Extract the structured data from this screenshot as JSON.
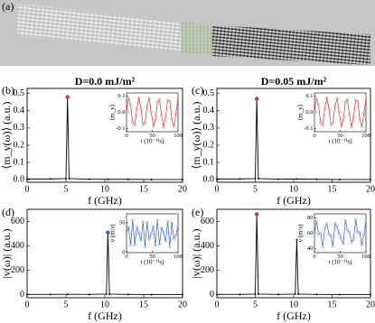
{
  "panel_labels": [
    "(a)",
    "(b)",
    "(c)",
    "(d)",
    "(e)"
  ],
  "chart_data": [
    {
      "type": "line",
      "title": "D=0.0 mJ/m²",
      "xlabel": "f (GHz)",
      "ylabel": "⟨m_y(ω)⟩ (a.u.)",
      "x": [
        0,
        3,
        5,
        5.2,
        5.4,
        8,
        10.4,
        13,
        16,
        20
      ],
      "values": [
        0.004,
        0.004,
        0.006,
        0.48,
        0.006,
        0.003,
        0.002,
        0.002,
        0.001,
        0.001
      ],
      "color": "#000000",
      "peak_color": "#e03030",
      "xlim": [
        0,
        20
      ],
      "xticks": [
        0,
        5,
        10,
        15,
        20
      ],
      "ylim": [
        -0.015,
        0.53
      ],
      "yticks": [
        {
          "value": 0,
          "label": "0.0"
        },
        0.1,
        0.2,
        0.3,
        0.4,
        0.5
      ],
      "inset": {
        "type": "line",
        "xlabel": "t (10⁻¹¹s)",
        "ylabel": "⟨m_y⟩",
        "color": "#e03030",
        "x": [
          0,
          4,
          8,
          12,
          16,
          20,
          24,
          28,
          32,
          36,
          40,
          44,
          48,
          52,
          56,
          60,
          64,
          68,
          72,
          76,
          80,
          84,
          88,
          92,
          96,
          100
        ],
        "values": [
          0,
          0.087,
          0.045,
          -0.063,
          -0.078,
          0.022,
          0.09,
          0.025,
          -0.077,
          -0.065,
          0.043,
          0.087,
          0.002,
          -0.086,
          -0.047,
          0.062,
          0.079,
          -0.02,
          -0.09,
          -0.027,
          0.076,
          0.066,
          -0.041,
          -0.088,
          -0.005,
          0.086
        ],
        "xlim": [
          0,
          100
        ],
        "xticks": [
          0,
          50,
          100
        ],
        "ylim": [
          -0.12,
          0.12
        ],
        "yticks": [
          -0.1,
          {
            "value": 0,
            "label": "0.0"
          },
          0.1
        ]
      }
    },
    {
      "type": "line",
      "title": "D=0.05 mJ/m²",
      "xlabel": "f (GHz)",
      "ylabel": "⟨m_y(ω)⟩ (a.u.)",
      "x": [
        0,
        3,
        5,
        5.2,
        5.4,
        8,
        10.4,
        13,
        16,
        20
      ],
      "values": [
        0.004,
        0.004,
        0.006,
        0.47,
        0.006,
        0.003,
        0.004,
        0.002,
        0.001,
        0.001
      ],
      "color": "#000000",
      "peak_color": "#e03030",
      "xlim": [
        0,
        20
      ],
      "xticks": [
        0,
        5,
        10,
        15,
        20
      ],
      "ylim": [
        -0.015,
        0.53
      ],
      "yticks": [
        {
          "value": 0,
          "label": "0.0"
        },
        0.1,
        0.2,
        0.3,
        0.4,
        0.5
      ],
      "inset": {
        "type": "line",
        "xlabel": "t (10⁻¹¹s)",
        "ylabel": "⟨m_y⟩",
        "color": "#e03030",
        "x": [
          0,
          4,
          8,
          12,
          16,
          20,
          24,
          28,
          32,
          36,
          40,
          44,
          48,
          52,
          56,
          60,
          64,
          68,
          72,
          76,
          80,
          84,
          88,
          92,
          96,
          100
        ],
        "values": [
          0,
          0.087,
          0.045,
          -0.063,
          -0.078,
          0.022,
          0.09,
          0.025,
          -0.077,
          -0.065,
          0.043,
          0.087,
          0.002,
          -0.086,
          -0.047,
          0.062,
          0.079,
          -0.02,
          -0.09,
          -0.027,
          0.076,
          0.066,
          -0.041,
          -0.088,
          -0.005,
          0.086
        ],
        "xlim": [
          0,
          100
        ],
        "xticks": [
          0,
          50,
          100
        ],
        "ylim": [
          -0.12,
          0.12
        ],
        "yticks": [
          -0.1,
          {
            "value": 0,
            "label": "0.0"
          },
          0.1
        ]
      }
    },
    {
      "type": "line",
      "xlabel": "f (GHz)",
      "ylabel": "|v(ω)| (a.u.)",
      "x": [
        0,
        3,
        5.2,
        8,
        10.2,
        10.4,
        10.6,
        13,
        16,
        20
      ],
      "values": [
        2,
        2,
        3,
        2,
        5,
        510,
        5,
        2,
        1,
        1
      ],
      "color": "#000000",
      "peak_color": "#3060d0",
      "xlim": [
        0,
        20
      ],
      "xticks": [
        0,
        5,
        10,
        15,
        20
      ],
      "ylim": [
        -25,
        700
      ],
      "yticks": [
        0,
        200,
        400,
        600
      ],
      "inset": {
        "type": "line",
        "xlabel": "t (10⁻¹¹s)",
        "ylabel": "v (m/s)",
        "color": "#3060d0",
        "x": [
          0,
          4,
          8,
          12,
          16,
          20,
          24,
          28,
          32,
          36,
          40,
          44,
          48,
          52,
          56,
          60,
          64,
          68,
          72,
          76,
          80,
          84,
          88,
          92,
          96,
          100
        ],
        "values": [
          32,
          43.1,
          12.9,
          54,
          13.1,
          42.6,
          32.6,
          20.5,
          51.4,
          10,
          50.6,
          21.9,
          30.9,
          44,
          12.3,
          54,
          13.7,
          41.6,
          33.7,
          19.5,
          51.9,
          10.1,
          50,
          22.9,
          29.8,
          44.9
        ],
        "xlim": [
          0,
          100
        ],
        "xticks": [
          0,
          50,
          100
        ],
        "ylim": [
          0,
          65
        ],
        "yticks": [
          0,
          50
        ]
      }
    },
    {
      "type": "line",
      "xlabel": "f (GHz)",
      "ylabel": "|v(ω)| (a.u.)",
      "x": [
        0,
        3,
        5,
        5.2,
        5.4,
        8,
        10.2,
        10.4,
        10.6,
        13,
        16,
        20
      ],
      "values": [
        2,
        2,
        5,
        660,
        5,
        2,
        5,
        450,
        5,
        2,
        1,
        1
      ],
      "color": "#000000",
      "peak_color": "#e03030",
      "xlim": [
        0,
        20
      ],
      "xticks": [
        0,
        5,
        10,
        15,
        20
      ],
      "ylim": [
        -25,
        700
      ],
      "yticks": [
        0,
        200,
        400,
        600
      ],
      "inset": {
        "type": "line",
        "xlabel": "t (10⁻¹¹s)",
        "ylabel": "v (m/s)",
        "color": "#3060d0",
        "x": [
          0,
          4,
          8,
          12,
          16,
          20,
          24,
          28,
          32,
          36,
          40,
          44,
          48,
          52,
          56,
          60,
          64,
          68,
          72,
          76,
          80,
          84,
          88,
          92,
          96,
          100
        ],
        "values": [
          60,
          75.6,
          59.1,
          59.6,
          42.7,
          66.8,
          72.2,
          59.1,
          56.8,
          43.4,
          72.5,
          68,
          59.9,
          52.9,
          46.6,
          76.2,
          63.9,
          60.8,
          48.6,
          51.9,
          77.4,
          60.9,
          61,
          45,
          58.6,
          76.1
        ],
        "xlim": [
          0,
          100
        ],
        "xticks": [
          0,
          50,
          100
        ],
        "ylim": [
          35,
          85
        ],
        "yticks": [
          40,
          60,
          80
        ]
      }
    }
  ]
}
